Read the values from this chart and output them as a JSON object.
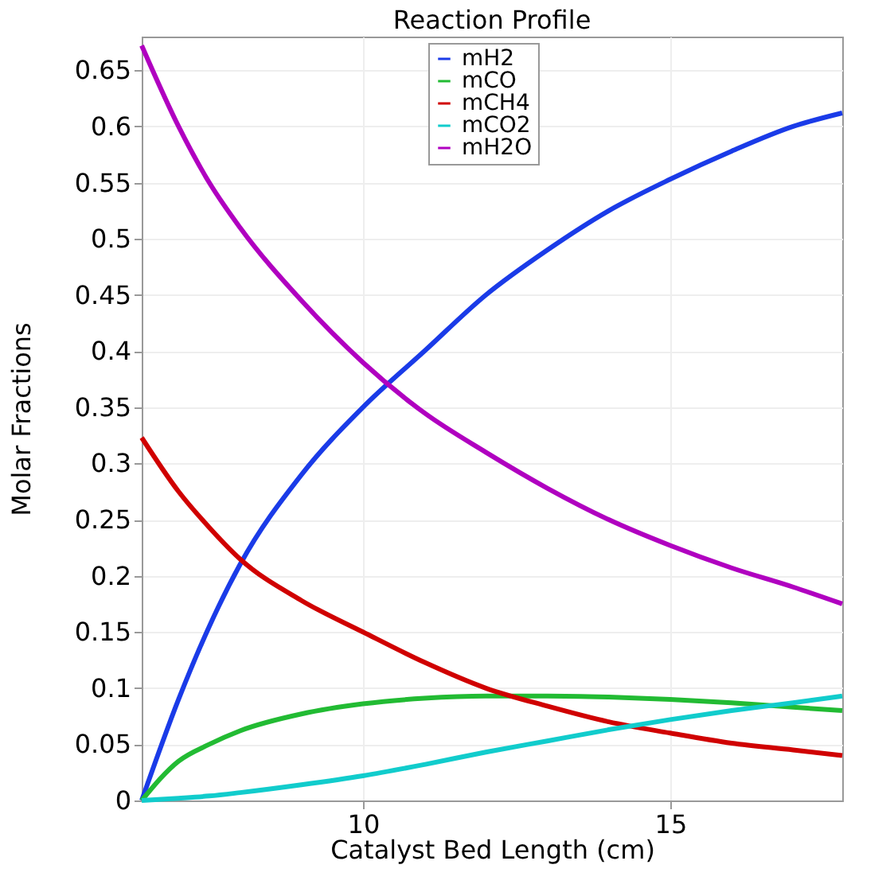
{
  "chart_data": {
    "type": "line",
    "title": "Reaction Profile",
    "xlabel": "Catalyst Bed Length (cm)",
    "ylabel": "Molar Fractions",
    "xlim": [
      6.4,
      17.8
    ],
    "xticks": [
      10,
      15
    ],
    "ylim": [
      0,
      0.68
    ],
    "yticks": [
      0,
      0.05,
      0.1,
      0.15,
      0.2,
      0.25,
      0.3,
      0.35,
      0.4,
      0.45,
      0.5,
      0.55,
      0.6,
      0.65
    ],
    "grid": true,
    "legend": "top",
    "marker": "none",
    "line_style": "solid",
    "x": [
      6.4,
      7,
      7.5,
      8,
      9,
      10,
      11,
      12,
      13,
      14,
      15,
      16,
      17,
      17.8
    ],
    "series": [
      {
        "name": "mH2",
        "color": "#1a3be8",
        "values": [
          0,
          0.09,
          0.155,
          0.21,
          0.29,
          0.35,
          0.4,
          0.45,
          0.49,
          0.525,
          0.553,
          0.578,
          0.6,
          0.612
        ]
      },
      {
        "name": "mCO",
        "color": "#22bb33",
        "values": [
          0,
          0.035,
          0.05,
          0.062,
          0.077,
          0.086,
          0.091,
          0.093,
          0.093,
          0.092,
          0.09,
          0.087,
          0.083,
          0.08
        ]
      },
      {
        "name": "mCH4",
        "color": "#d00000",
        "values": [
          0.323,
          0.275,
          0.243,
          0.215,
          0.178,
          0.15,
          0.123,
          0.1,
          0.084,
          0.07,
          0.06,
          0.051,
          0.045,
          0.04
        ]
      },
      {
        "name": "mCO2",
        "color": "#11cccc",
        "values": [
          0,
          0.002,
          0.004,
          0.007,
          0.014,
          0.022,
          0.032,
          0.043,
          0.053,
          0.063,
          0.072,
          0.08,
          0.087,
          0.093
        ]
      },
      {
        "name": "mH2O",
        "color": "#b000c0",
        "values": [
          0.672,
          0.6,
          0.55,
          0.51,
          0.445,
          0.39,
          0.345,
          0.31,
          0.278,
          0.25,
          0.227,
          0.207,
          0.19,
          0.175
        ]
      }
    ]
  }
}
